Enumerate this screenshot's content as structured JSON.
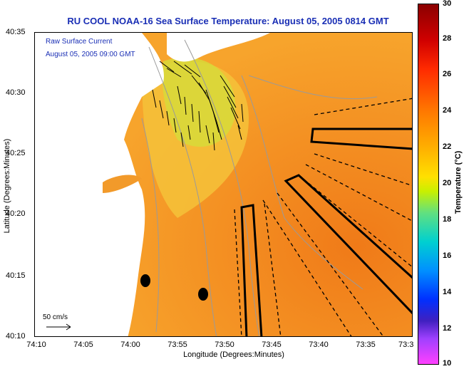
{
  "title": "RU COOL  NOAA-16  Sea Surface Temperature:  August 05, 2005 0814 GMT",
  "legend": {
    "line1": "Raw Surface Current",
    "line2": "August 05, 2005 09:00 GMT"
  },
  "scale_label": "50 cm/s",
  "axes": {
    "xlabel": "Longitude (Degrees:Minutes)",
    "ylabel": "Latitude (Degrees:Minutes)",
    "xticks": [
      "74:10",
      "74:05",
      "74:00",
      "73:55",
      "73:50",
      "73:45",
      "73:40",
      "73:35",
      "73:3"
    ],
    "yticks": [
      "40:35",
      "40:30",
      "40:25",
      "40:20",
      "40:15",
      "40:10"
    ]
  },
  "colorbar": {
    "label": "Temperature (°C)",
    "ticks": [
      "30",
      "28",
      "26",
      "24",
      "22",
      "20",
      "18",
      "16",
      "14",
      "12",
      "10"
    ]
  },
  "colors": {
    "water": "#f59a2a",
    "land": "#ffffff",
    "title": "#1a2fb5"
  }
}
